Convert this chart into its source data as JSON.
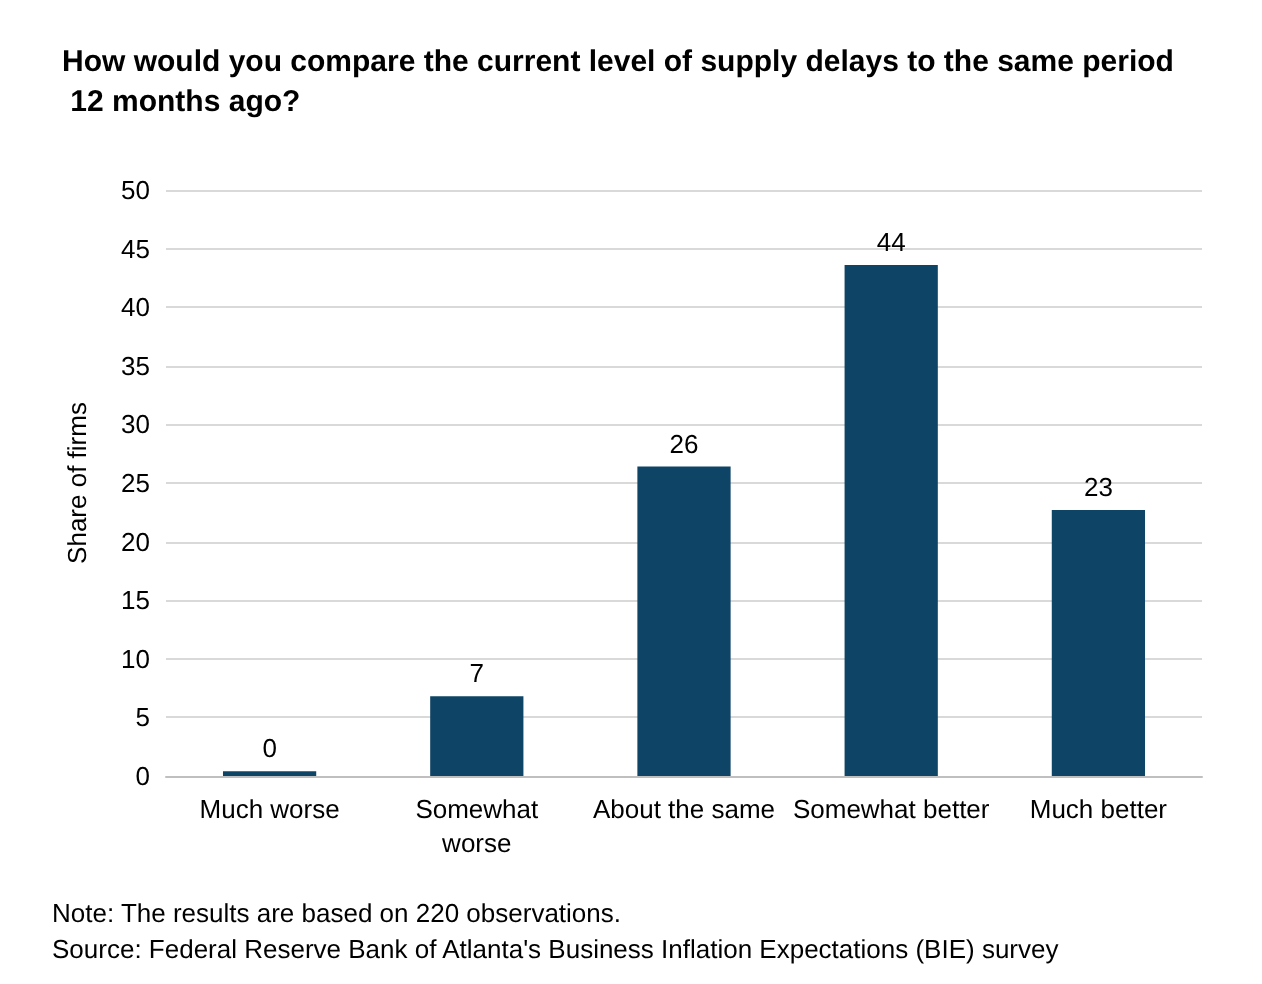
{
  "chart_data": {
    "type": "bar",
    "title": "How would you compare the current level of supply delays to the same period 12 months ago?",
    "ylabel": "Share of firms",
    "categories": [
      "Much worse",
      "Somewhat\nworse",
      "About the same",
      "Somewhat better",
      "Much better"
    ],
    "values": [
      0.4,
      6.8,
      26.4,
      43.6,
      22.7
    ],
    "value_labels": [
      "0",
      "7",
      "26",
      "44",
      "23"
    ],
    "color": "#0e4466",
    "ylim": [
      0,
      50
    ],
    "yticks": [
      0,
      5,
      10,
      15,
      20,
      25,
      30,
      35,
      40,
      45,
      50
    ],
    "grid": "y",
    "annotations": [
      "Note: The results are based on 220 observations.",
      "Source: Federal Reserve Bank of Atlanta's Business Inflation Expectations (BIE) survey"
    ]
  }
}
